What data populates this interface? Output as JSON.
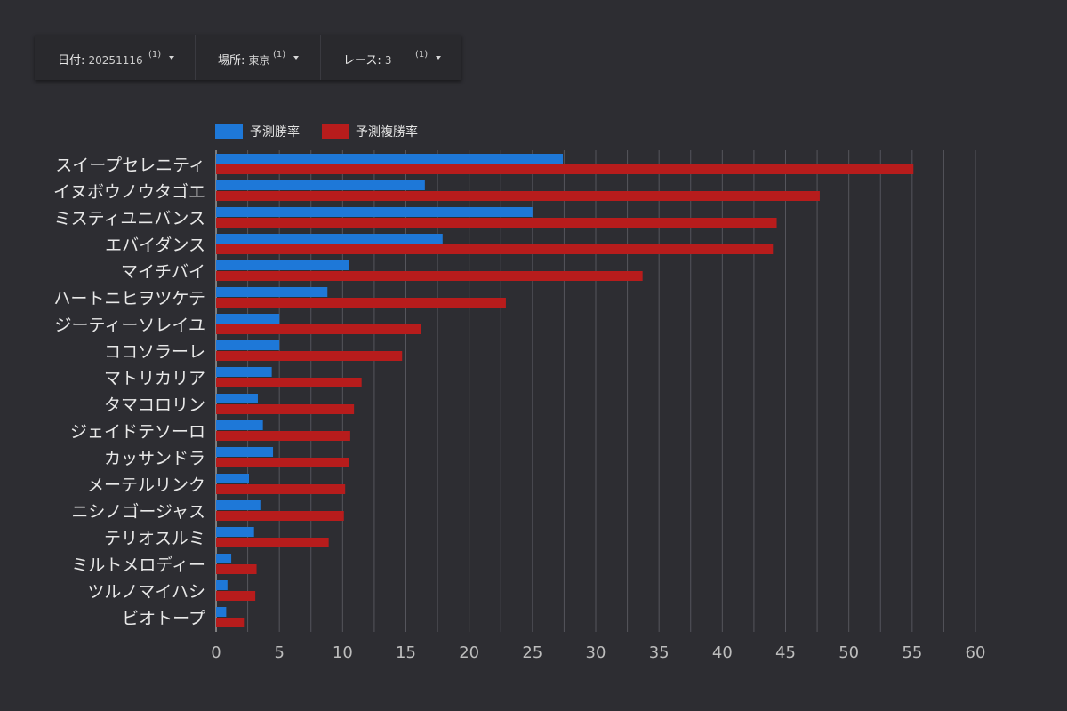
{
  "filters": [
    {
      "label": "日付",
      "value": "20251116",
      "count": "(1)"
    },
    {
      "label": "場所",
      "value": "東京",
      "count": "(1)"
    },
    {
      "label": "レース",
      "value": "3",
      "count": "(1)"
    }
  ],
  "colors": {
    "win": "#1e78d8",
    "place": "#b71c1c",
    "grid": "#55555c",
    "axis": "#9a9a9a"
  },
  "chart_data": {
    "type": "bar",
    "orientation": "horizontal",
    "categories": [
      "スイープセレニティ",
      "イヌボウノウタゴエ",
      "ミスティユニバンス",
      "エバイダンス",
      "マイチバイ",
      "ハートニヒヲツケテ",
      "ジーティーソレイユ",
      "ココソラーレ",
      "マトリカリア",
      "タマコロリン",
      "ジェイドテソーロ",
      "カッサンドラ",
      "メーテルリンク",
      "ニシノゴージャス",
      "テリオスルミ",
      "ミルトメロディー",
      "ツルノマイハシ",
      "ビオトープ"
    ],
    "series": [
      {
        "name": "予測勝率",
        "values": [
          27.4,
          16.5,
          25.0,
          17.9,
          10.5,
          8.8,
          5.0,
          5.0,
          4.4,
          3.3,
          3.7,
          4.5,
          2.6,
          3.5,
          3.0,
          1.2,
          0.9,
          0.8
        ]
      },
      {
        "name": "予測複勝率",
        "values": [
          55.1,
          47.7,
          44.3,
          44.0,
          33.7,
          22.9,
          16.2,
          14.7,
          11.5,
          10.9,
          10.6,
          10.5,
          10.2,
          10.1,
          8.9,
          3.2,
          3.1,
          2.2
        ]
      }
    ],
    "xticks": [
      "0",
      "5",
      "10",
      "15",
      "20",
      "25",
      "30",
      "35",
      "40",
      "45",
      "50",
      "55",
      "60"
    ],
    "xlim": [
      0,
      60
    ],
    "grid_step": 2.5,
    "title": "",
    "xlabel": "",
    "ylabel": ""
  }
}
